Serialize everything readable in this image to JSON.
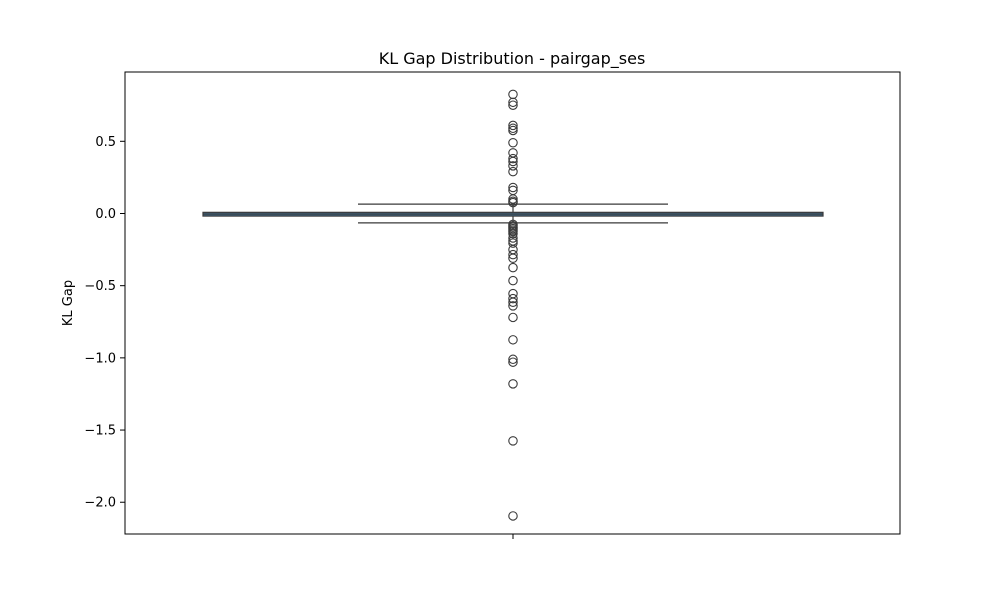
{
  "chart_data": {
    "type": "box",
    "title": "KL Gap Distribution - pairgap_ses",
    "xlabel": "",
    "ylabel": "KL Gap",
    "ylim": [
      -2.22,
      0.98
    ],
    "yticks": [
      0.5,
      0.0,
      -0.5,
      -1.0,
      -1.5,
      -2.0
    ],
    "ytick_labels": [
      "0.5",
      "0.0",
      "−0.5",
      "−1.0",
      "−1.5",
      "−2.0"
    ],
    "grid": false,
    "box_color": "#3d6a8c",
    "stats": {
      "q1": -0.018,
      "median": -0.004,
      "q3": 0.008,
      "whisker_low": -0.065,
      "whisker_high": 0.065
    },
    "outliers": [
      0.825,
      0.77,
      0.75,
      0.61,
      0.59,
      0.575,
      0.49,
      0.42,
      0.38,
      0.36,
      0.33,
      0.29,
      0.18,
      0.16,
      0.1,
      0.085,
      0.075,
      -0.075,
      -0.085,
      -0.095,
      -0.105,
      -0.115,
      -0.125,
      -0.14,
      -0.17,
      -0.19,
      -0.205,
      -0.25,
      -0.285,
      -0.31,
      -0.375,
      -0.465,
      -0.555,
      -0.59,
      -0.615,
      -0.64,
      -0.72,
      -0.875,
      -1.01,
      -1.03,
      -1.18,
      -1.575,
      -2.095
    ]
  }
}
